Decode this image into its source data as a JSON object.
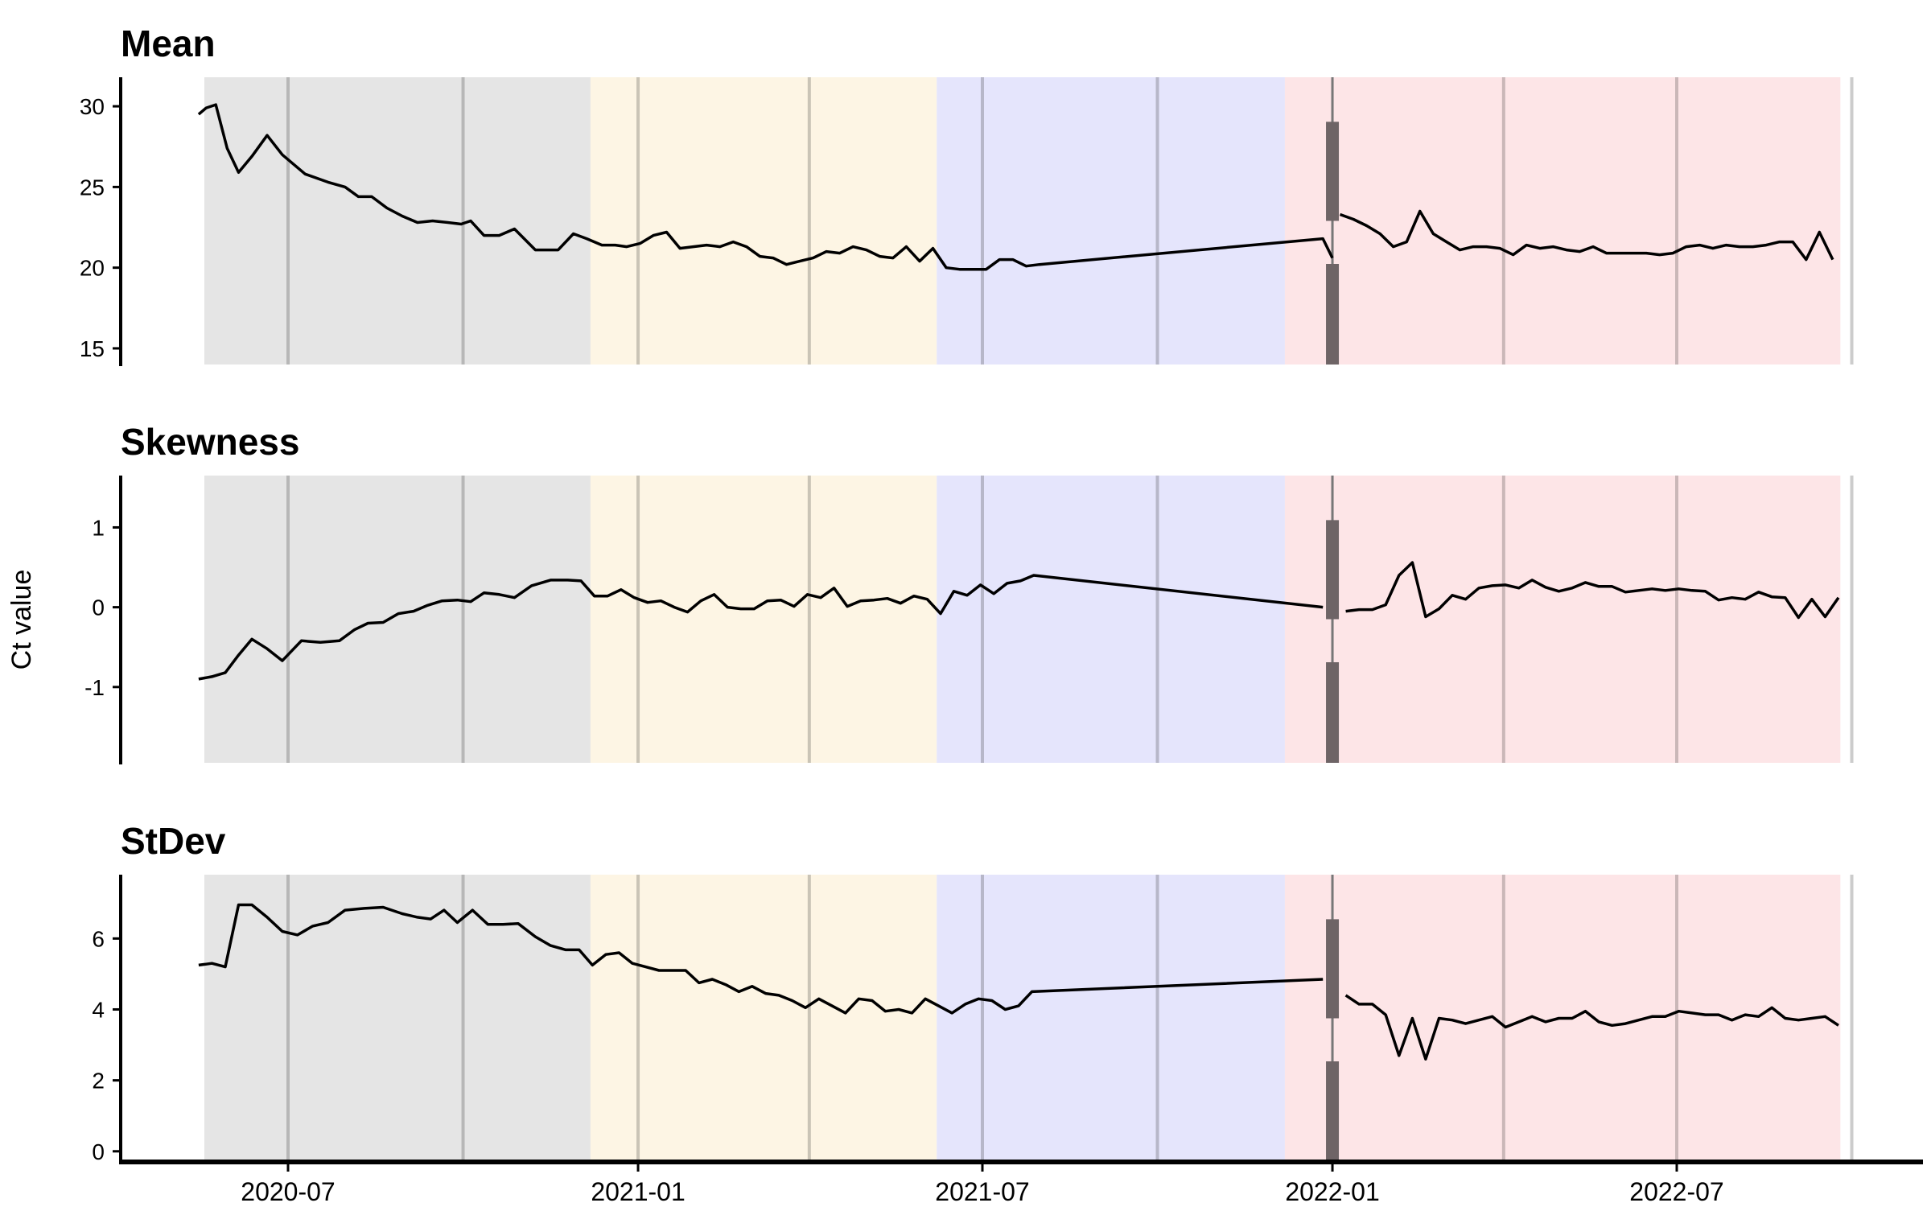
{
  "chart_data": {
    "type": "line",
    "ylabel": "Ct value",
    "x_ticks": [
      "2020-07",
      "2021-01",
      "2021-07",
      "2022-01",
      "2022-07"
    ],
    "periods": [
      {
        "start": "2020-05-18",
        "end": "2020-12-07",
        "color": "#e5e5e5"
      },
      {
        "start": "2020-12-07",
        "end": "2021-06-07",
        "color": "#fdf5e4"
      },
      {
        "start": "2021-06-07",
        "end": "2021-12-07",
        "color": "#e5e5fc"
      },
      {
        "start": "2021-12-07",
        "end": "2022-09-25",
        "color": "#fde5e7"
      }
    ],
    "panels": [
      {
        "title": "Mean",
        "ylim": [
          14,
          31.8
        ],
        "yticks": [
          15,
          20,
          25,
          30
        ],
        "segments": [
          {
            "x": [
              "2020-05-15",
              "2020-05-19",
              "2020-05-24",
              "2020-05-30",
              "2020-06-05",
              "2020-06-12",
              "2020-06-20",
              "2020-06-28",
              "2020-07-10",
              "2020-07-22",
              "2020-07-31",
              "2020-08-07",
              "2020-08-14",
              "2020-08-22",
              "2020-08-30",
              "2020-09-07",
              "2020-09-15",
              "2020-09-23",
              "2020-09-30",
              "2020-10-05",
              "2020-10-12",
              "2020-10-20",
              "2020-10-28",
              "2020-11-08",
              "2020-11-20",
              "2020-11-28",
              "2020-12-05",
              "2020-12-13",
              "2020-12-20",
              "2020-12-26",
              "2021-01-02",
              "2021-01-09",
              "2021-01-16",
              "2021-01-23",
              "2021-01-30",
              "2021-02-06",
              "2021-02-13",
              "2021-02-20",
              "2021-02-27",
              "2021-03-06",
              "2021-03-13",
              "2021-03-20",
              "2021-03-27",
              "2021-04-03",
              "2021-04-10",
              "2021-04-17",
              "2021-04-24",
              "2021-05-01",
              "2021-05-08",
              "2021-05-15",
              "2021-05-22",
              "2021-05-29",
              "2021-06-05",
              "2021-06-12",
              "2021-06-19",
              "2021-06-26",
              "2021-07-03",
              "2021-07-10",
              "2021-07-17",
              "2021-07-24",
              "2021-07-31",
              "2021-12-27",
              "2022-01-01"
            ],
            "y": [
              29.5,
              29.9,
              30.1,
              27.4,
              25.9,
              26.9,
              28.2,
              27.0,
              25.8,
              25.3,
              25.0,
              24.4,
              24.4,
              23.7,
              23.2,
              22.8,
              22.9,
              22.8,
              22.7,
              22.9,
              22.0,
              22.0,
              22.4,
              21.1,
              21.1,
              22.1,
              21.8,
              21.4,
              21.4,
              21.3,
              21.5,
              22.0,
              22.2,
              21.2,
              21.3,
              21.4,
              21.3,
              21.6,
              21.3,
              20.7,
              20.6,
              20.2,
              20.4,
              20.6,
              21.0,
              20.9,
              21.3,
              21.1,
              20.7,
              20.6,
              21.3,
              20.4,
              21.2,
              20.0,
              19.9,
              19.9,
              19.9,
              20.5,
              20.5,
              20.1,
              20.2,
              21.8,
              20.6
            ]
          },
          {
            "x": [
              "2022-01-05",
              "2022-01-12",
              "2022-01-19",
              "2022-01-26",
              "2022-02-02",
              "2022-02-09",
              "2022-02-16",
              "2022-02-23",
              "2022-03-02",
              "2022-03-09",
              "2022-03-16",
              "2022-03-23",
              "2022-03-30",
              "2022-04-06",
              "2022-04-13",
              "2022-04-20",
              "2022-04-27",
              "2022-05-04",
              "2022-05-11",
              "2022-05-18",
              "2022-05-25",
              "2022-06-01",
              "2022-06-08",
              "2022-06-15",
              "2022-06-22",
              "2022-06-29",
              "2022-07-06",
              "2022-07-13",
              "2022-07-20",
              "2022-07-27",
              "2022-08-03",
              "2022-08-10",
              "2022-08-17",
              "2022-08-24",
              "2022-08-31",
              "2022-09-07",
              "2022-09-14",
              "2022-09-21"
            ],
            "y": [
              23.3,
              23.0,
              22.6,
              22.1,
              21.3,
              21.6,
              23.5,
              22.1,
              21.6,
              21.1,
              21.3,
              21.3,
              21.2,
              20.8,
              21.4,
              21.2,
              21.3,
              21.1,
              21.0,
              21.3,
              20.9,
              20.9,
              20.9,
              20.9,
              20.8,
              20.9,
              21.3,
              21.4,
              21.2,
              21.4,
              21.3,
              21.3,
              21.4,
              21.6,
              21.6,
              20.5,
              22.2,
              20.5
            ]
          }
        ]
      },
      {
        "title": "Skewness",
        "ylim": [
          -1.95,
          1.65
        ],
        "yticks": [
          -1,
          0,
          1
        ],
        "ytick_labels": [
          "-1",
          "0",
          "1"
        ],
        "segments": [
          {
            "x": [
              "2020-05-15",
              "2020-05-22",
              "2020-05-29",
              "2020-06-05",
              "2020-06-12",
              "2020-06-20",
              "2020-06-28",
              "2020-07-08",
              "2020-07-18",
              "2020-07-28",
              "2020-08-05",
              "2020-08-12",
              "2020-08-20",
              "2020-08-28",
              "2020-09-05",
              "2020-09-12",
              "2020-09-20",
              "2020-09-28",
              "2020-10-05",
              "2020-10-12",
              "2020-10-20",
              "2020-10-28",
              "2020-11-06",
              "2020-11-16",
              "2020-11-25",
              "2020-12-02",
              "2020-12-09",
              "2020-12-16",
              "2020-12-23",
              "2020-12-30",
              "2021-01-06",
              "2021-01-13",
              "2021-01-20",
              "2021-01-27",
              "2021-02-03",
              "2021-02-10",
              "2021-02-17",
              "2021-02-24",
              "2021-03-03",
              "2021-03-10",
              "2021-03-17",
              "2021-03-24",
              "2021-03-31",
              "2021-04-07",
              "2021-04-14",
              "2021-04-21",
              "2021-04-28",
              "2021-05-05",
              "2021-05-12",
              "2021-05-19",
              "2021-05-26",
              "2021-06-02",
              "2021-06-09",
              "2021-06-16",
              "2021-06-23",
              "2021-06-30",
              "2021-07-07",
              "2021-07-14",
              "2021-07-21",
              "2021-07-28",
              "2021-12-27"
            ],
            "y": [
              -0.9,
              -0.87,
              -0.82,
              -0.6,
              -0.4,
              -0.52,
              -0.67,
              -0.42,
              -0.44,
              -0.42,
              -0.28,
              -0.2,
              -0.19,
              -0.08,
              -0.05,
              0.02,
              0.08,
              0.09,
              0.07,
              0.18,
              0.16,
              0.12,
              0.27,
              0.34,
              0.34,
              0.33,
              0.14,
              0.14,
              0.22,
              0.12,
              0.06,
              0.08,
              0.0,
              -0.06,
              0.08,
              0.16,
              0.0,
              -0.02,
              -0.02,
              0.08,
              0.09,
              0.01,
              0.16,
              0.12,
              0.24,
              0.01,
              0.08,
              0.09,
              0.11,
              0.05,
              0.14,
              0.1,
              -0.08,
              0.2,
              0.15,
              0.28,
              0.17,
              0.3,
              0.33,
              0.4,
              0.0
            ]
          },
          {
            "x": [
              "2022-01-08",
              "2022-01-15",
              "2022-01-22",
              "2022-01-29",
              "2022-02-05",
              "2022-02-12",
              "2022-02-19",
              "2022-02-26",
              "2022-03-05",
              "2022-03-12",
              "2022-03-19",
              "2022-03-26",
              "2022-04-02",
              "2022-04-09",
              "2022-04-16",
              "2022-04-23",
              "2022-04-30",
              "2022-05-07",
              "2022-05-14",
              "2022-05-21",
              "2022-05-28",
              "2022-06-04",
              "2022-06-11",
              "2022-06-18",
              "2022-06-25",
              "2022-07-02",
              "2022-07-09",
              "2022-07-16",
              "2022-07-23",
              "2022-07-30",
              "2022-08-06",
              "2022-08-13",
              "2022-08-20",
              "2022-08-27",
              "2022-09-03",
              "2022-09-10",
              "2022-09-17",
              "2022-09-24"
            ],
            "y": [
              -0.05,
              -0.03,
              -0.03,
              0.03,
              0.4,
              0.56,
              -0.12,
              -0.02,
              0.15,
              0.1,
              0.24,
              0.27,
              0.28,
              0.24,
              0.34,
              0.25,
              0.2,
              0.24,
              0.31,
              0.26,
              0.26,
              0.19,
              0.21,
              0.23,
              0.21,
              0.23,
              0.21,
              0.2,
              0.09,
              0.12,
              0.1,
              0.19,
              0.13,
              0.12,
              -0.13,
              0.1,
              -0.12,
              0.12
            ]
          }
        ]
      },
      {
        "title": "StDev",
        "ylim": [
          -0.3,
          7.8
        ],
        "yticks": [
          0,
          2,
          4,
          6
        ],
        "segments": [
          {
            "x": [
              "2020-05-15",
              "2020-05-22",
              "2020-05-29",
              "2020-06-05",
              "2020-06-12",
              "2020-06-20",
              "2020-06-28",
              "2020-07-06",
              "2020-07-14",
              "2020-07-22",
              "2020-07-31",
              "2020-08-10",
              "2020-08-20",
              "2020-08-30",
              "2020-09-07",
              "2020-09-14",
              "2020-09-21",
              "2020-09-28",
              "2020-10-06",
              "2020-10-14",
              "2020-10-22",
              "2020-10-30",
              "2020-11-08",
              "2020-11-16",
              "2020-11-24",
              "2020-12-01",
              "2020-12-08",
              "2020-12-15",
              "2020-12-22",
              "2020-12-29",
              "2021-01-05",
              "2021-01-12",
              "2021-01-19",
              "2021-01-26",
              "2021-02-02",
              "2021-02-09",
              "2021-02-16",
              "2021-02-23",
              "2021-03-02",
              "2021-03-09",
              "2021-03-16",
              "2021-03-23",
              "2021-03-30",
              "2021-04-06",
              "2021-04-13",
              "2021-04-20",
              "2021-04-27",
              "2021-05-04",
              "2021-05-11",
              "2021-05-18",
              "2021-05-25",
              "2021-06-01",
              "2021-06-08",
              "2021-06-15",
              "2021-06-22",
              "2021-06-29",
              "2021-07-06",
              "2021-07-13",
              "2021-07-20",
              "2021-07-27",
              "2021-12-27"
            ],
            "y": [
              5.25,
              5.3,
              5.2,
              6.95,
              6.95,
              6.6,
              6.2,
              6.1,
              6.35,
              6.45,
              6.8,
              6.85,
              6.88,
              6.7,
              6.6,
              6.55,
              6.8,
              6.45,
              6.8,
              6.4,
              6.4,
              6.42,
              6.05,
              5.8,
              5.68,
              5.68,
              5.25,
              5.55,
              5.6,
              5.3,
              5.2,
              5.1,
              5.1,
              5.1,
              4.75,
              4.85,
              4.7,
              4.5,
              4.65,
              4.45,
              4.4,
              4.25,
              4.05,
              4.3,
              4.1,
              3.9,
              4.3,
              4.25,
              3.95,
              4.0,
              3.9,
              4.3,
              4.1,
              3.9,
              4.15,
              4.3,
              4.25,
              4.0,
              4.1,
              4.5,
              4.85
            ]
          },
          {
            "x": [
              "2022-01-08",
              "2022-01-15",
              "2022-01-22",
              "2022-01-29",
              "2022-02-05",
              "2022-02-12",
              "2022-02-19",
              "2022-02-26",
              "2022-03-05",
              "2022-03-12",
              "2022-03-19",
              "2022-03-26",
              "2022-04-02",
              "2022-04-09",
              "2022-04-16",
              "2022-04-23",
              "2022-04-30",
              "2022-05-07",
              "2022-05-14",
              "2022-05-21",
              "2022-05-28",
              "2022-06-04",
              "2022-06-11",
              "2022-06-18",
              "2022-06-25",
              "2022-07-02",
              "2022-07-09",
              "2022-07-16",
              "2022-07-23",
              "2022-07-30",
              "2022-08-06",
              "2022-08-13",
              "2022-08-20",
              "2022-08-27",
              "2022-09-03",
              "2022-09-10",
              "2022-09-17",
              "2022-09-24"
            ],
            "y": [
              4.4,
              4.15,
              4.15,
              3.85,
              2.7,
              3.75,
              2.6,
              3.75,
              3.7,
              3.6,
              3.7,
              3.8,
              3.5,
              3.65,
              3.8,
              3.65,
              3.75,
              3.75,
              3.95,
              3.65,
              3.55,
              3.6,
              3.7,
              3.8,
              3.8,
              3.95,
              3.9,
              3.85,
              3.85,
              3.7,
              3.85,
              3.8,
              4.05,
              3.75,
              3.7,
              3.75,
              3.8,
              3.55
            ]
          }
        ]
      }
    ]
  }
}
